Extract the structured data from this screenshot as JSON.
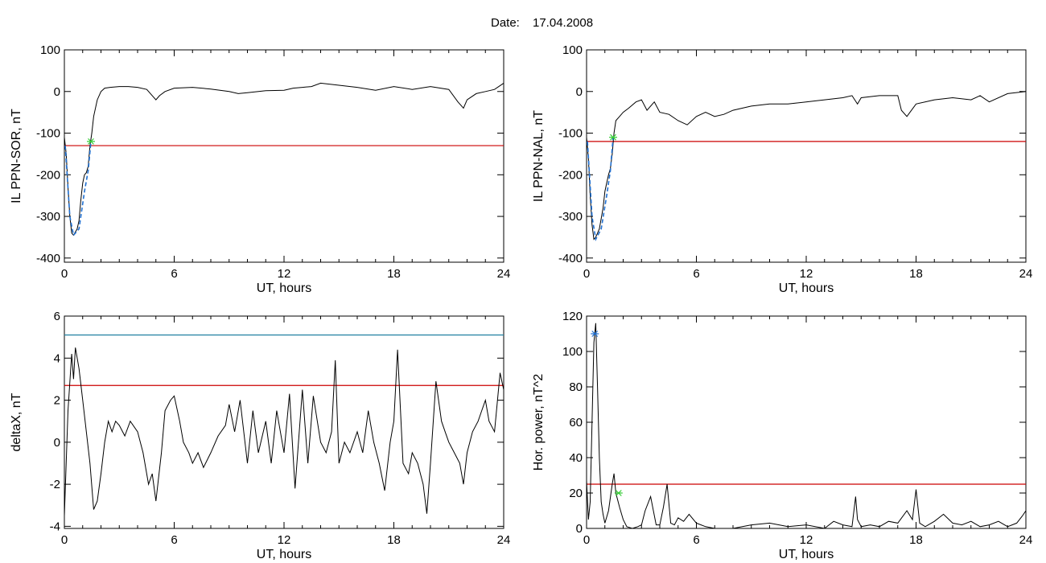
{
  "header": {
    "date_label": "Date:",
    "date_value": "17.04.2008"
  },
  "colors": {
    "trace": "#000000",
    "threshold": "#cc0000",
    "fit": "#1f6fd0",
    "upper_line": "#1f7fa0",
    "marker": "#33cc33"
  },
  "chart_data": [
    {
      "type": "line",
      "title": "",
      "xlabel": "UT, hours",
      "ylabel": "IL PPN-SOR, nT",
      "xlim": [
        0,
        24
      ],
      "ylim": [
        -410,
        100
      ],
      "x_ticks": [
        "0",
        "6",
        "12",
        "18",
        "24"
      ],
      "y_ticks": [
        "100",
        "0",
        "-100",
        "-200",
        "-300",
        "-400"
      ],
      "y_tick_values": [
        100,
        0,
        -100,
        -200,
        -300,
        -400
      ],
      "threshold": -130,
      "marker": {
        "x": 1.45,
        "y": -120
      },
      "fit_segment": [
        [
          0.05,
          -130
        ],
        [
          0.3,
          -300
        ],
        [
          0.5,
          -345
        ],
        [
          0.8,
          -330
        ],
        [
          1.1,
          -240
        ],
        [
          1.3,
          -190
        ],
        [
          1.45,
          -120
        ]
      ],
      "series": [
        {
          "x": [
            0,
            0.1,
            0.2,
            0.3,
            0.4,
            0.5,
            0.7,
            0.8,
            0.9,
            1.0,
            1.1,
            1.2,
            1.3,
            1.4,
            1.5,
            1.6,
            1.8,
            2.0,
            2.2,
            2.5,
            3.0,
            3.5,
            4.0,
            4.5,
            4.8,
            5.0,
            5.2,
            5.5,
            6.0,
            7.0,
            8.0,
            9.0,
            9.5,
            10.0,
            11.0,
            12.0,
            12.5,
            13.0,
            13.5,
            14.0,
            15.0,
            16.0,
            17.0,
            18.0,
            19.0,
            20.0,
            21.0,
            21.5,
            21.8,
            22.0,
            22.5,
            23.0,
            23.5,
            24.0
          ],
          "values": [
            -110,
            -150,
            -230,
            -300,
            -340,
            -345,
            -330,
            -310,
            -260,
            -220,
            -200,
            -195,
            -180,
            -130,
            -100,
            -60,
            -20,
            0,
            8,
            10,
            12,
            12,
            10,
            5,
            -10,
            -20,
            -10,
            0,
            8,
            10,
            6,
            0,
            -5,
            -3,
            2,
            3,
            8,
            10,
            12,
            20,
            15,
            10,
            3,
            12,
            5,
            12,
            5,
            -25,
            -40,
            -20,
            -5,
            0,
            5,
            20
          ]
        }
      ]
    },
    {
      "type": "line",
      "title": "",
      "xlabel": "UT, hours",
      "ylabel": "IL PPN-NAL, nT",
      "xlim": [
        0,
        24
      ],
      "ylim": [
        -410,
        100
      ],
      "x_ticks": [
        "0",
        "6",
        "12",
        "18",
        "24"
      ],
      "y_ticks": [
        "100",
        "0",
        "-100",
        "-200",
        "-300",
        "-400"
      ],
      "y_tick_values": [
        100,
        0,
        -100,
        -200,
        -300,
        -400
      ],
      "threshold": -120,
      "marker": {
        "x": 1.45,
        "y": -110
      },
      "fit_segment": [
        [
          0.05,
          -120
        ],
        [
          0.3,
          -300
        ],
        [
          0.5,
          -355
        ],
        [
          0.8,
          -330
        ],
        [
          1.1,
          -250
        ],
        [
          1.3,
          -190
        ],
        [
          1.45,
          -110
        ]
      ],
      "series": [
        {
          "x": [
            0,
            0.1,
            0.2,
            0.3,
            0.4,
            0.5,
            0.7,
            0.9,
            1.0,
            1.1,
            1.2,
            1.3,
            1.4,
            1.5,
            1.6,
            1.8,
            2.0,
            2.3,
            2.7,
            3.0,
            3.3,
            3.7,
            4.0,
            4.5,
            5.0,
            5.5,
            6.0,
            6.5,
            7.0,
            7.5,
            8.0,
            8.5,
            9.0,
            10.0,
            11.0,
            12.0,
            13.0,
            14.0,
            14.5,
            14.8,
            15.0,
            16.0,
            17.0,
            17.2,
            17.5,
            18.0,
            19.0,
            20.0,
            21.0,
            21.5,
            22.0,
            23.0,
            24.0
          ],
          "values": [
            -110,
            -160,
            -250,
            -320,
            -355,
            -350,
            -330,
            -280,
            -240,
            -220,
            -200,
            -185,
            -150,
            -100,
            -70,
            -60,
            -50,
            -40,
            -25,
            -20,
            -45,
            -25,
            -50,
            -55,
            -70,
            -80,
            -60,
            -50,
            -60,
            -55,
            -45,
            -40,
            -35,
            -30,
            -30,
            -25,
            -20,
            -15,
            -10,
            -30,
            -15,
            -10,
            -10,
            -45,
            -60,
            -30,
            -20,
            -15,
            -20,
            -10,
            -25,
            -5,
            0
          ]
        }
      ]
    },
    {
      "type": "line",
      "title": "",
      "xlabel": "UT, hours",
      "ylabel": "deltaX, nT",
      "xlim": [
        0,
        24
      ],
      "ylim": [
        -4.1,
        6
      ],
      "x_ticks": [
        "0",
        "6",
        "12",
        "18",
        "24"
      ],
      "y_ticks": [
        "6",
        "4",
        "2",
        "0",
        "-2",
        "-4"
      ],
      "y_tick_values": [
        6,
        4,
        2,
        0,
        -2,
        -4
      ],
      "threshold": 2.7,
      "upper_line": 5.1,
      "series": [
        {
          "x": [
            0,
            0.2,
            0.4,
            0.5,
            0.6,
            0.8,
            1.0,
            1.2,
            1.4,
            1.6,
            1.8,
            2.0,
            2.2,
            2.4,
            2.6,
            2.8,
            3.0,
            3.3,
            3.6,
            4.0,
            4.3,
            4.6,
            4.8,
            5.0,
            5.3,
            5.5,
            5.8,
            6.0,
            6.3,
            6.5,
            6.8,
            7.0,
            7.3,
            7.6,
            8.0,
            8.4,
            8.8,
            9.0,
            9.3,
            9.6,
            10.0,
            10.3,
            10.6,
            11.0,
            11.3,
            11.6,
            12.0,
            12.3,
            12.6,
            13.0,
            13.3,
            13.6,
            14.0,
            14.3,
            14.6,
            14.8,
            15.0,
            15.3,
            15.6,
            16.0,
            16.3,
            16.6,
            16.9,
            17.2,
            17.5,
            17.8,
            18.0,
            18.2,
            18.5,
            18.8,
            19.0,
            19.3,
            19.6,
            19.8,
            20.0,
            20.3,
            20.6,
            20.8,
            21.0,
            21.3,
            21.6,
            21.8,
            22.0,
            22.3,
            22.6,
            22.8,
            23.0,
            23.2,
            23.5,
            23.8,
            24.0
          ],
          "values": [
            -3.5,
            1.5,
            4.2,
            3.0,
            4.5,
            3.5,
            2.0,
            0.5,
            -1.0,
            -3.2,
            -2.8,
            -1.5,
            0.0,
            1.0,
            0.5,
            1.0,
            0.8,
            0.3,
            1.0,
            0.5,
            -0.5,
            -2.0,
            -1.5,
            -2.8,
            -0.5,
            1.5,
            2.0,
            2.2,
            1.0,
            0.0,
            -0.5,
            -1.0,
            -0.5,
            -1.2,
            -0.5,
            0.3,
            0.8,
            1.8,
            0.5,
            2.0,
            -1.0,
            1.5,
            -0.5,
            1.0,
            -1.0,
            1.5,
            -0.5,
            2.3,
            -2.2,
            2.5,
            -1.0,
            2.2,
            0.0,
            -0.5,
            0.5,
            3.9,
            -1.0,
            0.0,
            -0.5,
            0.5,
            -0.5,
            1.5,
            0.0,
            -1.0,
            -2.3,
            0.0,
            1.0,
            4.4,
            -1.0,
            -1.5,
            -0.5,
            -1.0,
            -2.0,
            -3.4,
            -1.0,
            2.9,
            1.0,
            0.5,
            0.0,
            -0.5,
            -1.0,
            -2.0,
            -0.5,
            0.5,
            1.0,
            1.5,
            2.0,
            1.0,
            0.5,
            3.3,
            2.5
          ]
        }
      ]
    },
    {
      "type": "line",
      "title": "",
      "xlabel": "UT, hours",
      "ylabel": "Hor. power, nT^2",
      "xlim": [
        0,
        24
      ],
      "ylim": [
        0,
        120
      ],
      "x_ticks": [
        "0",
        "6",
        "12",
        "18",
        "24"
      ],
      "y_ticks": [
        "120",
        "100",
        "80",
        "60",
        "40",
        "20",
        "0"
      ],
      "y_tick_values": [
        120,
        100,
        80,
        60,
        40,
        20,
        0
      ],
      "threshold": 25,
      "marker": {
        "x": 1.75,
        "y": 20
      },
      "peak_marker": {
        "x": 0.45,
        "y": 110
      },
      "series": [
        {
          "x": [
            0,
            0.1,
            0.2,
            0.3,
            0.4,
            0.5,
            0.6,
            0.7,
            0.8,
            0.9,
            1.0,
            1.2,
            1.4,
            1.5,
            1.6,
            1.8,
            2.0,
            2.2,
            2.5,
            2.8,
            3.0,
            3.2,
            3.5,
            3.8,
            4.0,
            4.2,
            4.4,
            4.6,
            4.8,
            5.0,
            5.3,
            5.6,
            6.0,
            6.5,
            7.0,
            8.0,
            9.0,
            10.0,
            11.0,
            12.0,
            13.0,
            13.5,
            14.0,
            14.5,
            14.7,
            14.8,
            15.0,
            15.5,
            16.0,
            16.5,
            17.0,
            17.5,
            17.8,
            18.0,
            18.2,
            18.5,
            19.0,
            19.5,
            20.0,
            20.5,
            21.0,
            21.5,
            22.0,
            22.5,
            23.0,
            23.5,
            23.8,
            24.0
          ],
          "values": [
            27,
            5,
            15,
            60,
            105,
            116,
            80,
            40,
            15,
            8,
            3,
            10,
            25,
            31,
            20,
            12,
            5,
            1,
            0,
            1,
            2,
            10,
            18,
            2,
            2,
            12,
            25,
            3,
            2,
            6,
            4,
            8,
            3,
            1,
            0,
            0,
            2,
            3,
            1,
            2,
            0,
            4,
            2,
            1,
            18,
            5,
            1,
            2,
            1,
            4,
            3,
            10,
            5,
            22,
            3,
            1,
            4,
            8,
            3,
            2,
            4,
            1,
            2,
            4,
            1,
            3,
            7,
            10
          ]
        }
      ]
    }
  ]
}
